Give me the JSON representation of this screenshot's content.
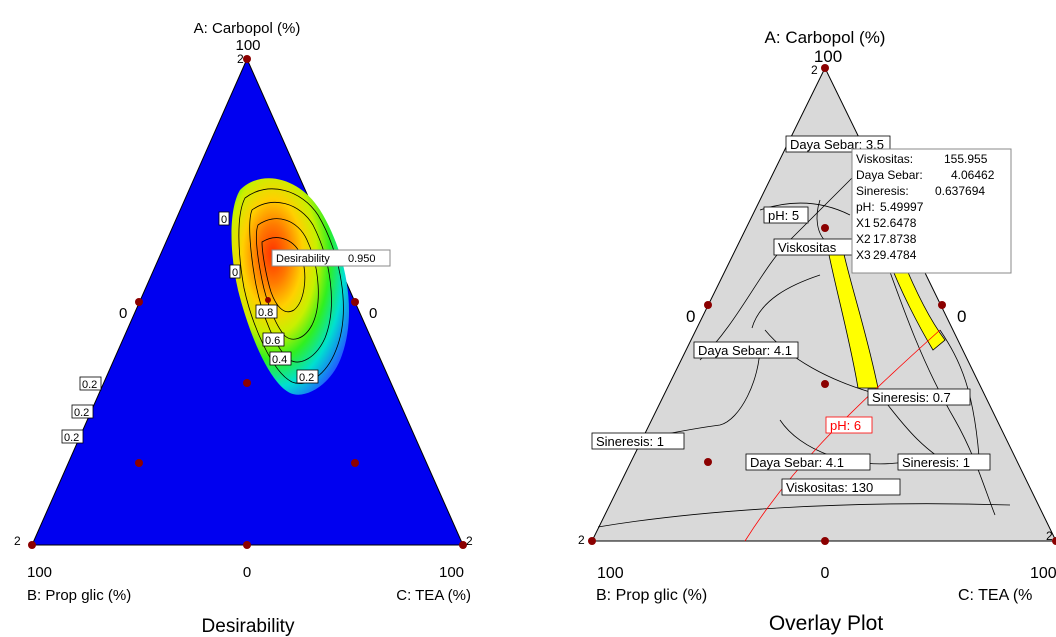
{
  "chart_data": [
    {
      "type": "contour",
      "title": "Desirability",
      "vertex_labels": {
        "A": "A: Carbopol (%)",
        "B": "B: Prop glic (%)",
        "C": "C: TEA (%)"
      },
      "vertex_values": {
        "A_top": "100",
        "B_left": "100",
        "C_right": "100",
        "bottom_mid": "0",
        "left_mid": "0",
        "right_mid": "0"
      },
      "design_point_count_labels": [
        "2",
        "2",
        "2"
      ],
      "contour_labels": [
        "0",
        "0",
        "0.8",
        "0.6",
        "0.4",
        "0.2",
        "0.2",
        "0.2",
        "0.2"
      ],
      "flag": {
        "label": "Desirability",
        "value": "0.950"
      },
      "colors": {
        "background": "#0000f0",
        "high": "#ff3a00",
        "design_point": "#8b0000"
      }
    },
    {
      "type": "overlay",
      "title": "Overlay Plot",
      "vertex_labels": {
        "A": "A: Carbopol (%)",
        "B": "B: Prop glic (%)",
        "C": "C: TEA (%"
      },
      "vertex_values": {
        "A_top": "100",
        "B_left": "100",
        "C_right": "100",
        "bottom_mid": "0",
        "left_mid": "0",
        "right_mid": "0"
      },
      "design_point_count_labels": [
        "2",
        "2",
        "2"
      ],
      "contour_labels": [
        "Daya Sebar: 3.5",
        "pH: 5",
        "Viskositas",
        "Daya Sebar: 4.1",
        "Sineresis: 0.7",
        "pH: 6",
        "Sineresis: 1",
        "Daya Sebar: 4.1",
        "Sineresis: 1",
        "Viskositas: 130"
      ],
      "flag": [
        {
          "label": "Viskositas:",
          "value": "155.955"
        },
        {
          "label": "Daya Sebar:",
          "value": "4.06462"
        },
        {
          "label": "Sineresis:",
          "value": "0.637694"
        },
        {
          "label": "pH:",
          "value": "5.49997"
        },
        {
          "label": "X1",
          "value": "52.6478"
        },
        {
          "label": "X2",
          "value": "17.8738"
        },
        {
          "label": "X3",
          "value": "29.4784"
        }
      ],
      "colors": {
        "background": "#d9d9d9",
        "feasible": "#ffff00",
        "ph_line": "#ff0000",
        "design_point": "#8b0000"
      }
    }
  ]
}
